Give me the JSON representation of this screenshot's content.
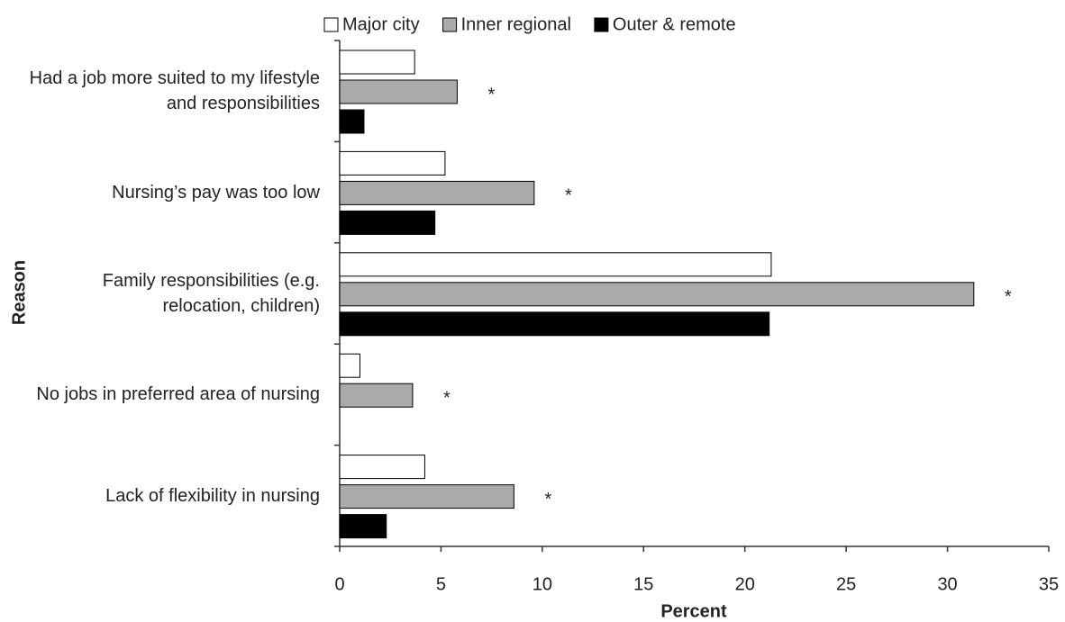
{
  "chart_data": {
    "type": "hbar",
    "x_label": "Percent",
    "y_label": "Reason",
    "categories": [
      "Had a job more suited to my lifestyle and responsibilities",
      "Nursing’s pay was too low",
      "Family responsibilities (e.g. relocation, children)",
      "No jobs in preferred  area of nursing",
      "Lack of flexibility in nursing"
    ],
    "series": [
      {
        "name": "Major city",
        "color": "#ffffff",
        "values": [
          3.7,
          5.2,
          21.3,
          1.0,
          4.2
        ]
      },
      {
        "name": "Inner regional",
        "color": "#aaaaaa",
        "values": [
          5.8,
          9.6,
          31.3,
          3.6,
          8.6
        ]
      },
      {
        "name": "Outer & remote",
        "color": "#000000",
        "values": [
          1.2,
          4.7,
          21.2,
          0,
          2.3
        ]
      }
    ],
    "annotations": [
      "*",
      "*",
      "*",
      "*",
      "*"
    ],
    "xlim": [
      0,
      35
    ],
    "xticks": [
      0,
      5,
      10,
      15,
      20,
      25,
      30,
      35
    ],
    "legend": "top",
    "grid": false
  }
}
